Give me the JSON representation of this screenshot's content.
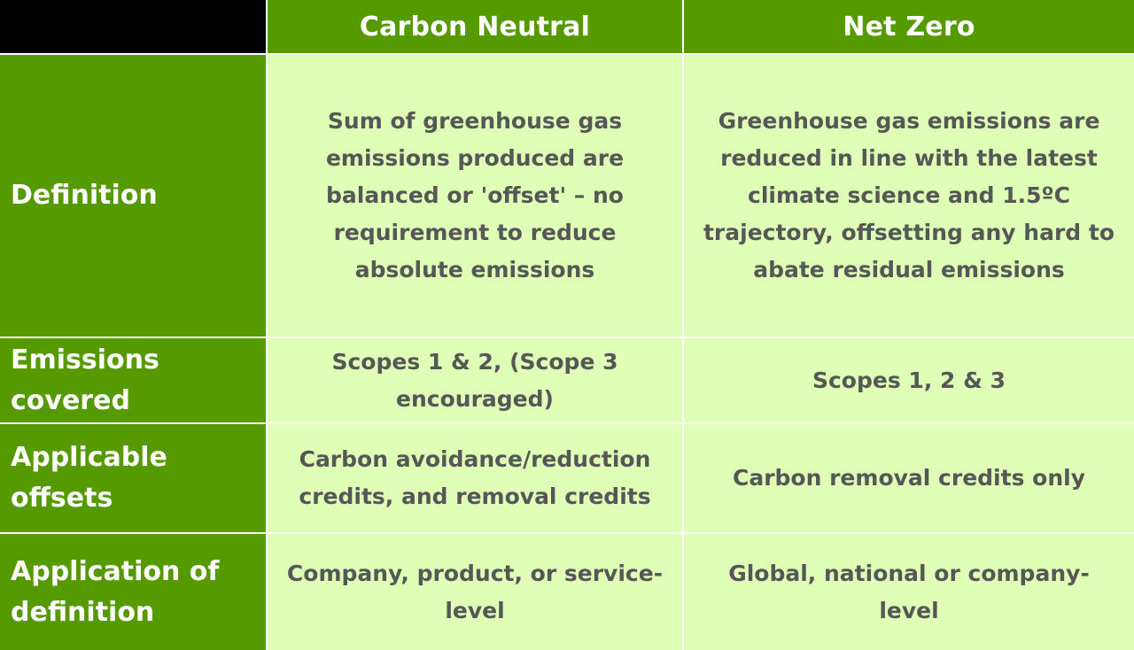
{
  "colors": {
    "header_green": "#549a00",
    "cell_light_green": "#dfffb6",
    "body_text": "#575757",
    "header_text": "#ffffff",
    "corner": "#000000"
  },
  "columns": [
    "Carbon Neutral",
    "Net Zero"
  ],
  "rows": [
    {
      "label": "Definition",
      "carbon_neutral": "Sum of greenhouse gas emissions produced are balanced or 'offset' – no requirement to reduce absolute emissions",
      "net_zero": "Greenhouse gas emissions are reduced in line with the latest climate science and 1.5ºC trajectory, offsetting any hard to abate residual emissions"
    },
    {
      "label": "Emissions covered",
      "carbon_neutral": "Scopes 1 & 2, (Scope 3 encouraged)",
      "net_zero": "Scopes 1, 2 & 3"
    },
    {
      "label": "Applicable offsets",
      "carbon_neutral": "Carbon avoidance/reduction credits, and removal credits",
      "net_zero": "Carbon removal credits only"
    },
    {
      "label": "Application of definition",
      "carbon_neutral": "Company, product, or service-level",
      "net_zero": "Global, national or company-level"
    }
  ]
}
